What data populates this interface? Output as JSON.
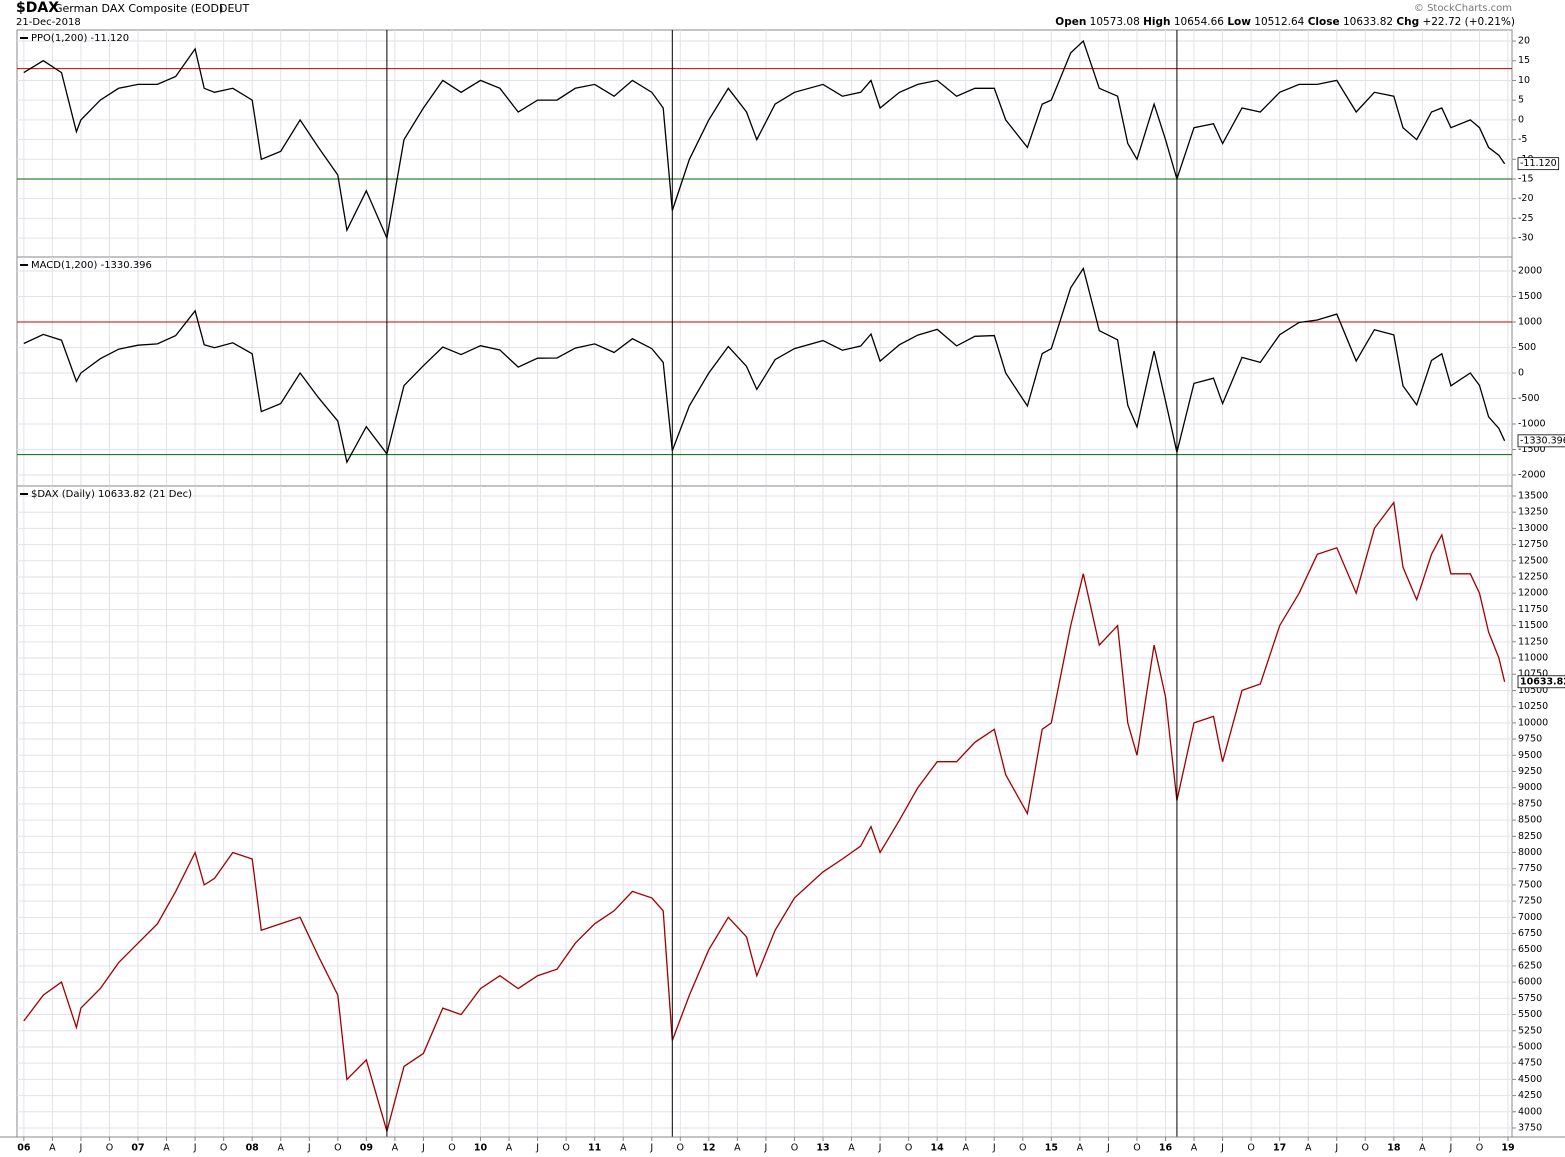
{
  "header": {
    "symbol": "$DAX",
    "name": "German DAX Composite (EOD)",
    "exchange": "DEUT",
    "date": "21-Dec-2018",
    "credit": "© StockCharts.com",
    "quote": [
      {
        "label": "Open",
        "value": "10573.08"
      },
      {
        "label": "High",
        "value": "10654.66"
      },
      {
        "label": "Low",
        "value": "10512.64"
      },
      {
        "label": "Close",
        "value": "10633.82"
      },
      {
        "label": "Chg",
        "value": "+22.72 (+0.21%)"
      }
    ]
  },
  "chart_data": [
    {
      "type": "line",
      "title": "PPO(1,200) -11.120",
      "last_label": "-11.120",
      "x": [
        2006.0,
        2006.17,
        2006.33,
        2006.46,
        2006.5,
        2006.67,
        2006.83,
        2007.0,
        2007.17,
        2007.33,
        2007.5,
        2007.58,
        2007.67,
        2007.83,
        2008.0,
        2008.08,
        2008.25,
        2008.42,
        2008.58,
        2008.75,
        2008.83,
        2009.0,
        2009.18,
        2009.33,
        2009.5,
        2009.67,
        2009.83,
        2010.0,
        2010.17,
        2010.33,
        2010.5,
        2010.67,
        2010.83,
        2011.0,
        2011.17,
        2011.33,
        2011.5,
        2011.6,
        2011.68,
        2011.83,
        2012.0,
        2012.17,
        2012.33,
        2012.42,
        2012.58,
        2012.75,
        2013.0,
        2013.17,
        2013.33,
        2013.42,
        2013.5,
        2013.67,
        2013.83,
        2014.0,
        2014.17,
        2014.33,
        2014.5,
        2014.6,
        2014.79,
        2014.92,
        2015.0,
        2015.17,
        2015.28,
        2015.42,
        2015.58,
        2015.67,
        2015.75,
        2015.9,
        2016.0,
        2016.1,
        2016.25,
        2016.42,
        2016.5,
        2016.67,
        2016.83,
        2017.0,
        2017.17,
        2017.33,
        2017.5,
        2017.67,
        2017.83,
        2018.0,
        2018.08,
        2018.2,
        2018.33,
        2018.42,
        2018.5,
        2018.67,
        2018.75,
        2018.83,
        2018.92,
        2018.97
      ],
      "series": [
        {
          "color": "#000000",
          "values": [
            12,
            15,
            12,
            -3,
            0,
            5,
            8,
            9,
            9,
            11,
            18,
            8,
            7,
            8,
            5,
            -10,
            -8,
            0,
            -7,
            -14,
            -28,
            -18,
            -30,
            -5,
            3,
            10,
            7,
            10,
            8,
            2,
            5,
            5,
            8,
            9,
            6,
            10,
            7,
            3,
            -23,
            -10,
            0,
            8,
            2,
            -5,
            4,
            7,
            9,
            6,
            7,
            10,
            3,
            7,
            9,
            10,
            6,
            8,
            8,
            0,
            -7,
            4,
            5,
            17,
            20,
            8,
            6,
            -6,
            -10,
            4,
            -5,
            -15,
            -2,
            -1,
            -6,
            3,
            2,
            7,
            9,
            9,
            10,
            2,
            7,
            6,
            -2,
            -5,
            2,
            3,
            -2,
            0,
            -2,
            -7,
            -9,
            -11.12
          ]
        }
      ],
      "ylim": [
        -34.8,
        22.8
      ],
      "yticks": [
        20,
        15,
        10,
        5,
        0,
        -5,
        -10,
        -15,
        -20,
        -25,
        -30
      ],
      "hlines": [
        {
          "value": 13,
          "color": "#cc0000"
        },
        {
          "value": -15,
          "color": "#006600"
        }
      ],
      "grid": true
    },
    {
      "type": "line",
      "title": "MACD(1,200) -1330.396",
      "last_label": "-1330.396",
      "x": [
        2006.0,
        2006.17,
        2006.33,
        2006.46,
        2006.5,
        2006.67,
        2006.83,
        2007.0,
        2007.17,
        2007.33,
        2007.5,
        2007.58,
        2007.67,
        2007.83,
        2008.0,
        2008.08,
        2008.25,
        2008.42,
        2008.58,
        2008.75,
        2008.83,
        2009.0,
        2009.18,
        2009.33,
        2009.5,
        2009.67,
        2009.83,
        2010.0,
        2010.17,
        2010.33,
        2010.5,
        2010.67,
        2010.83,
        2011.0,
        2011.17,
        2011.33,
        2011.5,
        2011.6,
        2011.68,
        2011.83,
        2012.0,
        2012.17,
        2012.33,
        2012.42,
        2012.58,
        2012.75,
        2013.0,
        2013.17,
        2013.33,
        2013.42,
        2013.5,
        2013.67,
        2013.83,
        2014.0,
        2014.17,
        2014.33,
        2014.5,
        2014.6,
        2014.79,
        2014.92,
        2015.0,
        2015.17,
        2015.28,
        2015.42,
        2015.58,
        2015.67,
        2015.75,
        2015.9,
        2016.0,
        2016.1,
        2016.25,
        2016.42,
        2016.5,
        2016.67,
        2016.83,
        2017.0,
        2017.17,
        2017.33,
        2017.5,
        2017.67,
        2017.83,
        2018.0,
        2018.08,
        2018.2,
        2018.33,
        2018.42,
        2018.5,
        2018.67,
        2018.75,
        2018.83,
        2018.92,
        2018.97
      ],
      "series": [
        {
          "color": "#000000",
          "values": [
            579,
            757,
            643,
            -164,
            0,
            281,
            467,
            545,
            570,
            733,
            1220,
            556,
            497,
            593,
            376,
            -756,
            -600,
            0,
            -482,
            -944,
            -1750,
            -1054,
            -1586,
            -247,
            143,
            509,
            360,
            536,
            452,
            116,
            290,
            295,
            489,
            570,
            402,
            673,
            478,
            207,
            -1523,
            -644,
            0,
            519,
            131,
            -321,
            262,
            478,
            636,
            447,
            530,
            764,
            233,
            556,
            743,
            855,
            532,
            719,
            733,
            0,
            -647,
            381,
            476,
            1671,
            2050,
            830,
            651,
            -638,
            -1056,
            431,
            -547,
            -1553,
            -204,
            -102,
            -600,
            306,
            208,
            752,
            991,
            1040,
            1155,
            235,
            850,
            747,
            -253,
            -626,
            247,
            376,
            -251,
            0,
            -245,
            -858,
            -1088,
            -1330.396
          ]
        }
      ],
      "ylim": [
        -2216,
        2275
      ],
      "yticks": [
        2000,
        1500,
        1000,
        500,
        0,
        -500,
        -1000,
        -1500,
        -2000
      ],
      "hlines": [
        {
          "value": 1000,
          "color": "#cc0000"
        },
        {
          "value": -1600,
          "color": "#006600"
        }
      ],
      "grid": true
    },
    {
      "type": "line",
      "title": "$DAX (Daily) 10633.82 (21 Dec)",
      "last_label": "10633.82",
      "x": [
        2006.0,
        2006.17,
        2006.33,
        2006.46,
        2006.5,
        2006.67,
        2006.83,
        2007.0,
        2007.17,
        2007.33,
        2007.5,
        2007.58,
        2007.67,
        2007.83,
        2008.0,
        2008.08,
        2008.25,
        2008.42,
        2008.58,
        2008.75,
        2008.83,
        2009.0,
        2009.18,
        2009.33,
        2009.5,
        2009.67,
        2009.83,
        2010.0,
        2010.17,
        2010.33,
        2010.5,
        2010.67,
        2010.83,
        2011.0,
        2011.17,
        2011.33,
        2011.5,
        2011.6,
        2011.68,
        2011.83,
        2012.0,
        2012.17,
        2012.33,
        2012.42,
        2012.58,
        2012.75,
        2013.0,
        2013.17,
        2013.33,
        2013.42,
        2013.5,
        2013.67,
        2013.83,
        2014.0,
        2014.17,
        2014.33,
        2014.5,
        2014.6,
        2014.79,
        2014.92,
        2015.0,
        2015.17,
        2015.28,
        2015.42,
        2015.58,
        2015.67,
        2015.75,
        2015.9,
        2016.0,
        2016.1,
        2016.25,
        2016.42,
        2016.5,
        2016.67,
        2016.83,
        2017.0,
        2017.17,
        2017.33,
        2017.5,
        2017.67,
        2017.83,
        2018.0,
        2018.08,
        2018.2,
        2018.33,
        2018.42,
        2018.5,
        2018.67,
        2018.75,
        2018.83,
        2018.92,
        2018.97
      ],
      "series": [
        {
          "color": "#a00000",
          "values": [
            5400,
            5800,
            6000,
            5300,
            5600,
            5900,
            6300,
            6600,
            6900,
            7400,
            8000,
            7500,
            7600,
            8000,
            7900,
            6800,
            6900,
            7000,
            6400,
            5800,
            4500,
            4800,
            3700,
            4700,
            4900,
            5600,
            5500,
            5900,
            6100,
            5900,
            6100,
            6200,
            6600,
            6900,
            7100,
            7400,
            7300,
            7100,
            5100,
            5800,
            6500,
            7000,
            6700,
            6100,
            6800,
            7300,
            7700,
            7900,
            8100,
            8400,
            8000,
            8500,
            9000,
            9400,
            9400,
            9700,
            9900,
            9200,
            8600,
            9900,
            10000,
            11500,
            12300,
            11200,
            11500,
            10000,
            9500,
            11200,
            10400,
            8800,
            10000,
            10100,
            9400,
            10500,
            10600,
            11500,
            12000,
            12600,
            12700,
            12000,
            13000,
            13400,
            12400,
            11900,
            12600,
            12900,
            12300,
            12300,
            12000,
            11400,
            11000,
            10633.82
          ]
        }
      ],
      "ylim": [
        3611,
        13654
      ],
      "yticks": [
        3750,
        4000,
        4250,
        4500,
        4750,
        5000,
        5250,
        5500,
        5750,
        6000,
        6250,
        6500,
        6750,
        7000,
        7250,
        7500,
        7750,
        8000,
        8250,
        8500,
        8750,
        9000,
        9250,
        9500,
        9750,
        10000,
        10250,
        10500,
        10750,
        11000,
        11250,
        11500,
        11750,
        12000,
        12250,
        12500,
        12750,
        13000,
        13250,
        13500
      ],
      "xlim": [
        2005.94,
        2019.035
      ],
      "xticks": [
        {
          "value": 2006,
          "label": "06"
        },
        {
          "value": 2006.25,
          "label": "A"
        },
        {
          "value": 2006.5,
          "label": "J"
        },
        {
          "value": 2006.75,
          "label": "O"
        },
        {
          "value": 2007,
          "label": "07"
        },
        {
          "value": 2007.25,
          "label": "A"
        },
        {
          "value": 2007.5,
          "label": "J"
        },
        {
          "value": 2007.75,
          "label": "O"
        },
        {
          "value": 2008,
          "label": "08"
        },
        {
          "value": 2008.25,
          "label": "A"
        },
        {
          "value": 2008.5,
          "label": "J"
        },
        {
          "value": 2008.75,
          "label": "O"
        },
        {
          "value": 2009,
          "label": "09"
        },
        {
          "value": 2009.25,
          "label": "A"
        },
        {
          "value": 2009.5,
          "label": "J"
        },
        {
          "value": 2009.75,
          "label": "O"
        },
        {
          "value": 2010,
          "label": "10"
        },
        {
          "value": 2010.25,
          "label": "A"
        },
        {
          "value": 2010.5,
          "label": "J"
        },
        {
          "value": 2010.75,
          "label": "O"
        },
        {
          "value": 2011,
          "label": "11"
        },
        {
          "value": 2011.25,
          "label": "A"
        },
        {
          "value": 2011.5,
          "label": "J"
        },
        {
          "value": 2011.75,
          "label": "O"
        },
        {
          "value": 2012,
          "label": "12"
        },
        {
          "value": 2012.25,
          "label": "A"
        },
        {
          "value": 2012.5,
          "label": "J"
        },
        {
          "value": 2012.75,
          "label": "O"
        },
        {
          "value": 2013,
          "label": "13"
        },
        {
          "value": 2013.25,
          "label": "A"
        },
        {
          "value": 2013.5,
          "label": "J"
        },
        {
          "value": 2013.75,
          "label": "O"
        },
        {
          "value": 2014,
          "label": "14"
        },
        {
          "value": 2014.25,
          "label": "A"
        },
        {
          "value": 2014.5,
          "label": "J"
        },
        {
          "value": 2014.75,
          "label": "O"
        },
        {
          "value": 2015,
          "label": "15"
        },
        {
          "value": 2015.25,
          "label": "A"
        },
        {
          "value": 2015.5,
          "label": "J"
        },
        {
          "value": 2015.75,
          "label": "O"
        },
        {
          "value": 2016,
          "label": "16"
        },
        {
          "value": 2016.25,
          "label": "A"
        },
        {
          "value": 2016.5,
          "label": "J"
        },
        {
          "value": 2016.75,
          "label": "O"
        },
        {
          "value": 2017,
          "label": "17"
        },
        {
          "value": 2017.25,
          "label": "A"
        },
        {
          "value": 2017.5,
          "label": "J"
        },
        {
          "value": 2017.75,
          "label": "O"
        },
        {
          "value": 2018,
          "label": "18"
        },
        {
          "value": 2018.25,
          "label": "A"
        },
        {
          "value": 2018.5,
          "label": "J"
        },
        {
          "value": 2018.75,
          "label": "O"
        },
        {
          "value": 2019,
          "label": "19"
        }
      ],
      "vlines": [
        2009.18,
        2011.68,
        2016.1
      ],
      "grid": true
    }
  ]
}
